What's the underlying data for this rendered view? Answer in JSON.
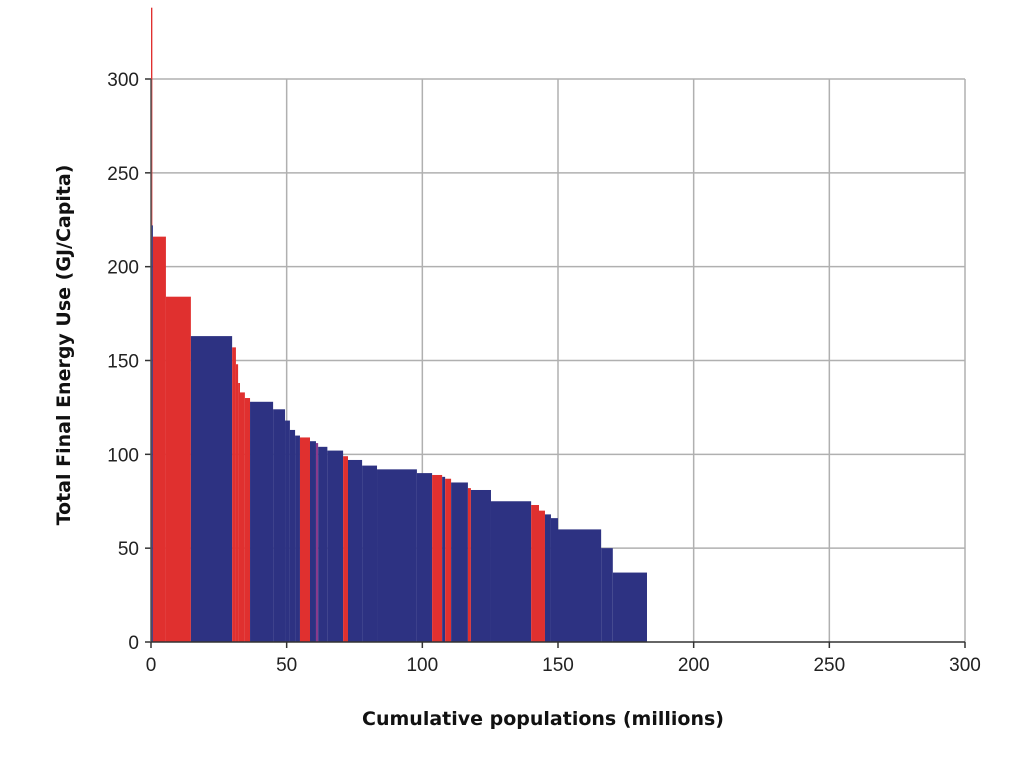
{
  "chart_data": {
    "type": "bar",
    "subtype": "variable-width step bars",
    "title": "",
    "xlabel": "Cumulative populations (millions)",
    "ylabel": "Total Final Energy Use (GJ/Capita)",
    "xlim": [
      0,
      300
    ],
    "ylim": [
      0,
      300
    ],
    "xticks": [
      "0",
      "50",
      "100",
      "150",
      "200",
      "250",
      "300"
    ],
    "yticks": [
      "0",
      "50",
      "100",
      "150",
      "200",
      "250",
      "300"
    ],
    "grid": true,
    "colors": {
      "highlight": "#e0302f",
      "base": "#2d3282",
      "thin": "#8a3a8c",
      "grid": "#b0b0b0"
    },
    "segments": [
      {
        "x0": 0,
        "x1": 0.5,
        "y": 338,
        "c": "highlight"
      },
      {
        "x0": 0.2,
        "x1": 0.7,
        "y": 222,
        "c": "base"
      },
      {
        "x0": 0.7,
        "x1": 5.5,
        "y": 216,
        "c": "highlight"
      },
      {
        "x0": 5.5,
        "x1": 14.7,
        "y": 184,
        "c": "highlight"
      },
      {
        "x0": 14.7,
        "x1": 29.9,
        "y": 163,
        "c": "base"
      },
      {
        "x0": 29.9,
        "x1": 31.3,
        "y": 157,
        "c": "highlight"
      },
      {
        "x0": 31.3,
        "x1": 32.1,
        "y": 148,
        "c": "highlight"
      },
      {
        "x0": 32.1,
        "x1": 32.8,
        "y": 138,
        "c": "highlight"
      },
      {
        "x0": 32.8,
        "x1": 34.6,
        "y": 133,
        "c": "highlight"
      },
      {
        "x0": 34.6,
        "x1": 36.5,
        "y": 130,
        "c": "highlight"
      },
      {
        "x0": 36.5,
        "x1": 45.0,
        "y": 128,
        "c": "base"
      },
      {
        "x0": 45.0,
        "x1": 49.4,
        "y": 124,
        "c": "base"
      },
      {
        "x0": 49.4,
        "x1": 51.2,
        "y": 118,
        "c": "base"
      },
      {
        "x0": 51.2,
        "x1": 53.1,
        "y": 113,
        "c": "base"
      },
      {
        "x0": 53.1,
        "x1": 54.9,
        "y": 110,
        "c": "base"
      },
      {
        "x0": 54.9,
        "x1": 58.6,
        "y": 109,
        "c": "highlight"
      },
      {
        "x0": 58.6,
        "x1": 60.8,
        "y": 107,
        "c": "base"
      },
      {
        "x0": 60.8,
        "x1": 61.6,
        "y": 106,
        "c": "thin"
      },
      {
        "x0": 61.6,
        "x1": 65.0,
        "y": 104,
        "c": "base"
      },
      {
        "x0": 65.0,
        "x1": 70.8,
        "y": 102,
        "c": "base"
      },
      {
        "x0": 70.8,
        "x1": 72.6,
        "y": 99,
        "c": "highlight"
      },
      {
        "x0": 72.6,
        "x1": 77.8,
        "y": 97,
        "c": "base"
      },
      {
        "x0": 77.8,
        "x1": 83.3,
        "y": 94,
        "c": "base"
      },
      {
        "x0": 83.3,
        "x1": 98.0,
        "y": 92,
        "c": "base"
      },
      {
        "x0": 98.0,
        "x1": 103.6,
        "y": 90,
        "c": "base"
      },
      {
        "x0": 103.6,
        "x1": 107.3,
        "y": 89,
        "c": "highlight"
      },
      {
        "x0": 107.3,
        "x1": 108.4,
        "y": 88,
        "c": "base"
      },
      {
        "x0": 108.4,
        "x1": 110.6,
        "y": 87,
        "c": "highlight"
      },
      {
        "x0": 110.6,
        "x1": 116.8,
        "y": 85,
        "c": "base"
      },
      {
        "x0": 116.8,
        "x1": 117.9,
        "y": 82,
        "c": "highlight"
      },
      {
        "x0": 117.9,
        "x1": 125.3,
        "y": 81,
        "c": "base"
      },
      {
        "x0": 125.3,
        "x1": 140.1,
        "y": 75,
        "c": "base"
      },
      {
        "x0": 140.1,
        "x1": 143.0,
        "y": 73,
        "c": "highlight"
      },
      {
        "x0": 143.0,
        "x1": 145.2,
        "y": 70,
        "c": "highlight"
      },
      {
        "x0": 145.2,
        "x1": 147.4,
        "y": 68,
        "c": "base"
      },
      {
        "x0": 147.4,
        "x1": 150.0,
        "y": 66,
        "c": "base"
      },
      {
        "x0": 150.0,
        "x1": 165.9,
        "y": 60,
        "c": "base"
      },
      {
        "x0": 165.9,
        "x1": 170.2,
        "y": 50,
        "c": "base"
      },
      {
        "x0": 170.2,
        "x1": 182.8,
        "y": 37,
        "c": "base"
      }
    ]
  }
}
